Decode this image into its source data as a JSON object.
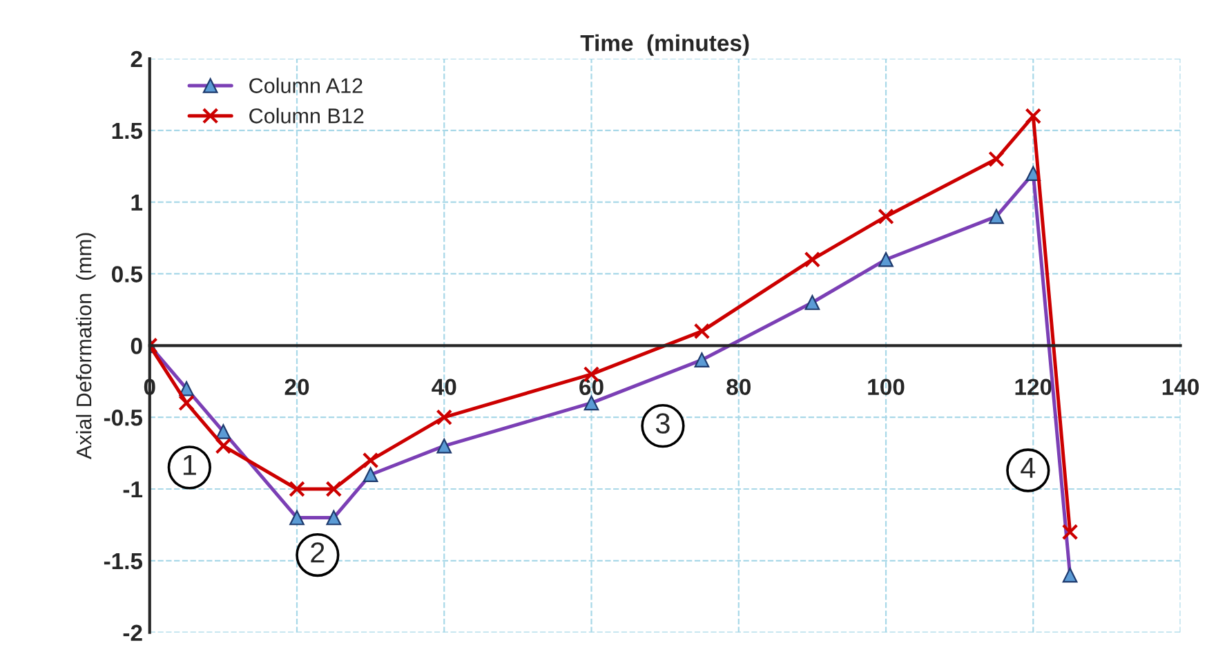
{
  "chart_data": {
    "type": "line",
    "xlabel": "Time  (minutes)",
    "ylabel": "Axial Deformation  (mm)",
    "x": [
      0,
      5,
      10,
      20,
      25,
      30,
      40,
      60,
      75,
      90,
      100,
      115,
      120,
      125
    ],
    "series": [
      {
        "name": "Column A12",
        "color": "#7b3fb5",
        "marker": "triangle",
        "values": [
          0,
          -0.3,
          -0.6,
          -1.2,
          -1.2,
          -0.9,
          -0.7,
          -0.4,
          -0.1,
          0.3,
          0.6,
          0.9,
          1.2,
          -1.6
        ]
      },
      {
        "name": "Column B12",
        "color": "#cc0000",
        "marker": "cross",
        "values": [
          0,
          -0.4,
          -0.7,
          -1.0,
          -1.0,
          -0.8,
          -0.5,
          -0.2,
          0.1,
          0.6,
          0.9,
          1.3,
          1.6,
          -1.3
        ]
      }
    ],
    "xlim": [
      0,
      140
    ],
    "xticks": [
      0,
      20,
      40,
      60,
      80,
      100,
      120,
      140
    ],
    "ylim": [
      -2,
      2
    ],
    "yticks": [
      -2,
      -1.5,
      -1,
      -0.5,
      0,
      0.5,
      1,
      1.5,
      2
    ],
    "grid": true,
    "legend": "top left",
    "line_style": "solid",
    "annotations": [
      {
        "text": "1",
        "x": 5.4,
        "y": -0.85
      },
      {
        "text": "2",
        "x": 22.8,
        "y": -1.46
      },
      {
        "text": "3",
        "x": 69.7,
        "y": -0.56
      },
      {
        "text": "4",
        "x": 119.3,
        "y": -0.87
      }
    ]
  }
}
